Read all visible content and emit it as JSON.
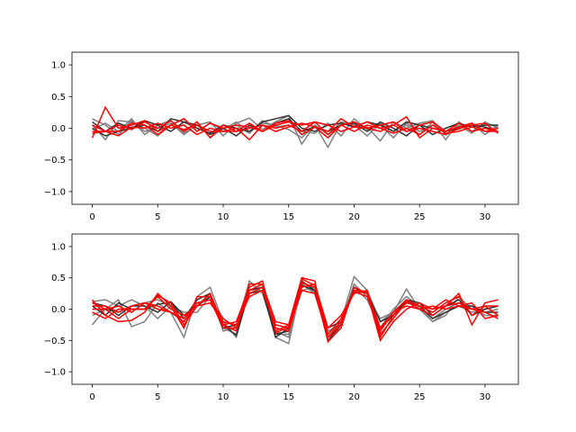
{
  "colors": {
    "gray_series": "#808080",
    "dark_series": "#333333",
    "red_series": "#ff0000",
    "axes": "#000000"
  },
  "chart_data": [
    {
      "type": "line",
      "title": "",
      "xlabel": "",
      "ylabel": "",
      "xlim": [
        -1.55,
        32.55
      ],
      "ylim": [
        -1.2,
        1.2
      ],
      "xticks": [
        0,
        5,
        10,
        15,
        20,
        25,
        30
      ],
      "yticks": [
        -1.0,
        -0.5,
        0.0,
        0.5,
        1.0
      ],
      "ytick_labels": [
        "−1.0",
        "−0.5",
        "0.0",
        "0.5",
        "1.0"
      ],
      "grid": false,
      "x": [
        0,
        1,
        2,
        3,
        4,
        5,
        6,
        7,
        8,
        9,
        10,
        11,
        12,
        13,
        14,
        15,
        16,
        17,
        18,
        19,
        20,
        21,
        22,
        23,
        24,
        25,
        26,
        27,
        28,
        29,
        30,
        31
      ],
      "series": [
        {
          "color": "#808080",
          "values": [
            0.15,
            0.05,
            -0.1,
            0.12,
            -0.05,
            0.0,
            0.08,
            -0.1,
            0.05,
            0.1,
            -0.12,
            0.08,
            0.16,
            -0.02,
            0.1,
            0.2,
            -0.25,
            0.05,
            -0.3,
            0.08,
            0.05,
            -0.12,
            0.08,
            -0.05,
            0.05,
            -0.1,
            0.1,
            -0.18,
            0.1,
            -0.05,
            0.08,
            0.02
          ]
        },
        {
          "color": "#808080",
          "values": [
            0.05,
            -0.18,
            0.12,
            0.1,
            0.0,
            -0.12,
            0.05,
            0.15,
            -0.05,
            0.08,
            -0.02,
            0.1,
            -0.05,
            0.08,
            0.05,
            -0.02,
            -0.15,
            0.05,
            -0.1,
            0.1,
            0.05,
            0.02,
            -0.2,
            0.1,
            0.0,
            0.08,
            0.12,
            -0.1,
            0.05,
            -0.08,
            0.1,
            0.0
          ]
        },
        {
          "color": "#808080",
          "values": [
            -0.02,
            0.08,
            -0.05,
            0.15,
            -0.1,
            0.05,
            0.12,
            -0.08,
            0.1,
            -0.15,
            0.0,
            0.05,
            -0.08,
            0.12,
            0.02,
            0.05,
            -0.05,
            -0.08,
            0.08,
            -0.12,
            0.15,
            -0.02,
            0.05,
            -0.15,
            0.08,
            -0.05,
            0.05,
            -0.05,
            -0.02,
            0.08,
            -0.1,
            0.05
          ]
        },
        {
          "color": "#333333",
          "values": [
            0.1,
            -0.05,
            0.08,
            0.0,
            0.05,
            -0.05,
            0.15,
            0.1,
            0.0,
            -0.08,
            0.05,
            0.0,
            -0.05,
            0.1,
            0.15,
            0.2,
            0.0,
            -0.05,
            0.05,
            0.08,
            0.02,
            0.1,
            0.05,
            -0.05,
            0.1,
            0.05,
            -0.1,
            0.0,
            0.08,
            0.02,
            0.05,
            0.05
          ]
        },
        {
          "color": "#333333",
          "values": [
            0.0,
            -0.12,
            -0.05,
            0.0,
            0.12,
            0.05,
            -0.05,
            0.1,
            0.05,
            -0.1,
            0.0,
            -0.12,
            0.05,
            -0.05,
            0.08,
            0.15,
            -0.05,
            0.02,
            -0.05,
            0.05,
            0.08,
            -0.05,
            0.1,
            0.0,
            -0.12,
            0.05,
            0.0,
            -0.05,
            0.0,
            0.05,
            0.02,
            -0.05
          ]
        },
        {
          "color": "#ff0000",
          "values": [
            -0.15,
            0.33,
            0.0,
            0.05,
            0.12,
            -0.05,
            0.05,
            0.15,
            -0.05,
            0.08,
            0.0,
            0.05,
            0.02,
            -0.05,
            0.08,
            0.12,
            -0.1,
            0.02,
            -0.05,
            0.15,
            0.02,
            0.1,
            0.0,
            0.05,
            -0.05,
            0.05,
            0.1,
            -0.05,
            0.02,
            0.08,
            -0.05,
            -0.05
          ]
        },
        {
          "color": "#ff0000",
          "values": [
            -0.08,
            -0.05,
            0.05,
            -0.02,
            0.1,
            0.0,
            0.12,
            -0.05,
            0.1,
            -0.15,
            0.05,
            -0.05,
            0.08,
            -0.05,
            0.05,
            0.1,
            0.05,
            0.1,
            -0.1,
            0.05,
            0.1,
            0.0,
            -0.05,
            0.05,
            0.18,
            -0.15,
            0.0,
            -0.05,
            0.08,
            -0.05,
            0.0,
            -0.05
          ]
        },
        {
          "color": "#ff0000",
          "values": [
            -0.05,
            -0.05,
            -0.12,
            0.02,
            0.0,
            0.08,
            0.0,
            0.05,
            -0.1,
            0.0,
            -0.05,
            -0.05,
            0.0,
            0.05,
            -0.05,
            0.02,
            0.08,
            0.02,
            -0.15,
            0.05,
            -0.05,
            0.05,
            0.0,
            -0.08,
            0.0,
            -0.1,
            0.05,
            -0.08,
            -0.05,
            0.02,
            -0.05,
            0.0
          ]
        },
        {
          "color": "#ff0000",
          "values": [
            0.05,
            -0.05,
            -0.05,
            0.08,
            0.05,
            -0.1,
            0.05,
            -0.02,
            0.05,
            -0.05,
            -0.05,
            0.0,
            -0.18,
            0.05,
            0.0,
            0.05,
            -0.05,
            0.1,
            0.05,
            -0.05,
            0.02,
            0.0,
            0.05,
            0.1,
            -0.05,
            0.0,
            -0.05,
            -0.1,
            0.0,
            0.05,
            0.08,
            -0.08
          ]
        }
      ]
    },
    {
      "type": "line",
      "title": "",
      "xlabel": "",
      "ylabel": "",
      "xlim": [
        -1.55,
        32.55
      ],
      "ylim": [
        -1.2,
        1.2
      ],
      "xticks": [
        0,
        5,
        10,
        15,
        20,
        25,
        30
      ],
      "yticks": [
        -1.0,
        -0.5,
        0.0,
        0.5,
        1.0
      ],
      "ytick_labels": [
        "−1.0",
        "−0.5",
        "0.0",
        "0.5",
        "1.0"
      ],
      "grid": false,
      "x": [
        0,
        1,
        2,
        3,
        4,
        5,
        6,
        7,
        8,
        9,
        10,
        11,
        12,
        13,
        14,
        15,
        16,
        17,
        18,
        19,
        20,
        21,
        22,
        23,
        24,
        25,
        26,
        27,
        28,
        29,
        30,
        31
      ],
      "series": [
        {
          "color": "#808080",
          "values": [
            -0.25,
            0.0,
            0.15,
            -0.28,
            -0.2,
            0.1,
            -0.05,
            -0.45,
            0.2,
            0.35,
            -0.2,
            -0.45,
            0.3,
            0.35,
            -0.45,
            -0.55,
            0.4,
            0.25,
            -0.4,
            -0.2,
            0.52,
            0.3,
            -0.2,
            -0.05,
            0.32,
            0.0,
            -0.2,
            -0.05,
            0.05,
            -0.05,
            0.0,
            0.05
          ]
        },
        {
          "color": "#808080",
          "values": [
            0.12,
            0.15,
            0.05,
            0.15,
            0.05,
            -0.15,
            0.05,
            -0.3,
            0.15,
            0.25,
            -0.35,
            -0.3,
            0.45,
            0.25,
            -0.4,
            -0.4,
            0.3,
            0.35,
            -0.35,
            -0.25,
            0.4,
            0.2,
            -0.15,
            -0.05,
            0.15,
            0.05,
            -0.15,
            0.0,
            0.1,
            0.05,
            -0.1,
            -0.1
          ]
        },
        {
          "color": "#808080",
          "values": [
            -0.1,
            0.0,
            -0.05,
            0.05,
            0.1,
            0.15,
            0.05,
            -0.05,
            -0.05,
            0.2,
            -0.3,
            -0.4,
            0.3,
            0.4,
            -0.35,
            -0.45,
            0.4,
            0.28,
            -0.45,
            -0.3,
            0.35,
            0.15,
            -0.3,
            0.0,
            0.2,
            0.05,
            -0.2,
            -0.1,
            0.2,
            0.0,
            -0.05,
            0.0
          ]
        },
        {
          "color": "#333333",
          "values": [
            0.05,
            -0.1,
            0.1,
            0.0,
            0.0,
            0.08,
            0.1,
            -0.15,
            0.15,
            0.25,
            -0.25,
            -0.42,
            0.3,
            0.35,
            -0.4,
            -0.35,
            0.45,
            0.3,
            -0.5,
            -0.25,
            0.3,
            0.28,
            -0.3,
            -0.1,
            0.15,
            0.1,
            -0.1,
            0.05,
            0.15,
            -0.1,
            0.0,
            0.05
          ]
        },
        {
          "color": "#333333",
          "values": [
            0.1,
            0.05,
            -0.1,
            0.05,
            0.05,
            -0.05,
            0.12,
            -0.1,
            0.05,
            0.2,
            -0.3,
            -0.25,
            0.25,
            0.3,
            -0.45,
            -0.3,
            0.38,
            0.3,
            -0.3,
            -0.2,
            0.35,
            0.25,
            -0.2,
            -0.1,
            0.12,
            0.05,
            -0.15,
            -0.05,
            0.05,
            0.05,
            -0.05,
            -0.05
          ]
        },
        {
          "color": "#ff0000",
          "values": [
            0.15,
            -0.1,
            -0.2,
            -0.18,
            -0.05,
            0.25,
            0.05,
            -0.3,
            0.2,
            0.2,
            -0.25,
            -0.35,
            0.4,
            0.4,
            -0.2,
            -0.25,
            0.5,
            0.45,
            -0.52,
            -0.3,
            0.35,
            0.25,
            -0.5,
            -0.2,
            0.0,
            0.1,
            0.0,
            0.05,
            0.25,
            -0.25,
            0.1,
            0.15
          ]
        },
        {
          "color": "#ff0000",
          "values": [
            0.05,
            0.05,
            -0.05,
            0.05,
            0.1,
            0.0,
            -0.05,
            -0.2,
            0.1,
            0.15,
            -0.3,
            -0.3,
            0.25,
            0.35,
            -0.3,
            -0.35,
            0.35,
            0.4,
            -0.3,
            -0.1,
            0.25,
            0.3,
            -0.45,
            -0.1,
            0.1,
            0.05,
            -0.05,
            0.1,
            0.2,
            -0.1,
            0.05,
            0.05
          ]
        },
        {
          "color": "#ff0000",
          "values": [
            -0.05,
            -0.15,
            0.0,
            0.0,
            0.0,
            0.2,
            0.0,
            -0.1,
            0.05,
            0.1,
            -0.2,
            -0.25,
            0.2,
            0.3,
            -0.25,
            -0.3,
            0.3,
            0.25,
            -0.45,
            -0.2,
            0.28,
            0.2,
            -0.35,
            -0.05,
            0.05,
            0.0,
            -0.1,
            0.05,
            0.1,
            0.0,
            -0.05,
            -0.15
          ]
        },
        {
          "color": "#ff0000",
          "values": [
            0.0,
            0.0,
            0.05,
            -0.05,
            0.1,
            0.05,
            -0.05,
            -0.15,
            0.1,
            0.15,
            -0.15,
            -0.3,
            0.3,
            0.4,
            -0.35,
            -0.25,
            0.48,
            0.38,
            -0.4,
            -0.15,
            0.3,
            0.28,
            -0.4,
            -0.15,
            0.12,
            0.0,
            0.05,
            0.0,
            0.05,
            0.1,
            -0.15,
            -0.1
          ]
        },
        {
          "color": "#ff0000",
          "values": [
            0.1,
            0.0,
            -0.15,
            0.0,
            0.0,
            0.22,
            0.1,
            -0.25,
            0.05,
            0.25,
            -0.25,
            -0.2,
            0.35,
            0.45,
            -0.38,
            -0.28,
            0.42,
            0.35,
            -0.45,
            -0.25,
            0.3,
            0.25,
            -0.3,
            -0.05,
            0.15,
            0.05,
            0.0,
            0.15,
            0.05,
            0.0,
            0.05,
            -0.1
          ]
        }
      ]
    }
  ]
}
